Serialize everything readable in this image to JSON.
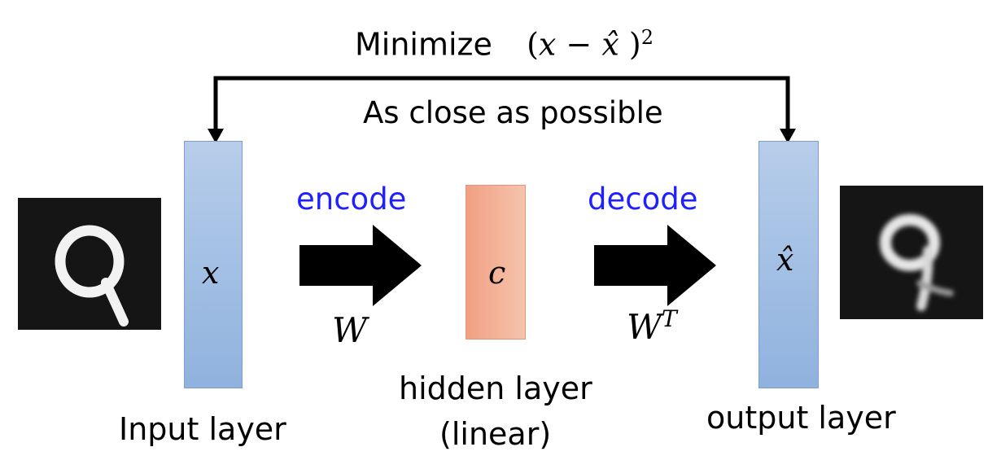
{
  "top": {
    "minimize_word": "Minimize",
    "formula_open": "(",
    "formula_x": "x",
    "formula_minus": " − ",
    "formula_xhat": "x̂",
    "formula_close": " )",
    "formula_exp": "2",
    "subtitle": "As close as possible"
  },
  "input": {
    "symbol": "x",
    "label": "Input layer",
    "digit": "9"
  },
  "encode": {
    "label": "encode",
    "weight": "W"
  },
  "hidden": {
    "symbol": "c",
    "label_line1": "hidden layer",
    "label_line2": "(linear)"
  },
  "decode": {
    "label": "decode",
    "weight": "W",
    "weight_sup": "T"
  },
  "output": {
    "symbol": "x̂",
    "label": "output layer",
    "digit": "9"
  },
  "colors": {
    "blue_text": "#1f1fff",
    "input_bar": "#a9c3e6",
    "hidden_bar": "#f3b095",
    "output_bar": "#a9c3e6",
    "image_bg": "#151515"
  }
}
